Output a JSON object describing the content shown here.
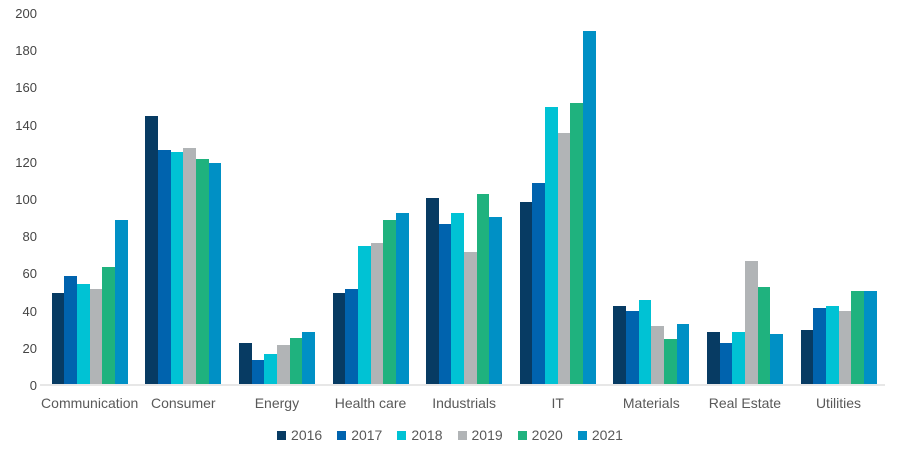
{
  "chart_data": {
    "type": "bar",
    "title": "",
    "xlabel": "",
    "ylabel": "",
    "categories": [
      "Communication",
      "Consumer",
      "Energy",
      "Health care",
      "Industrials",
      "IT",
      "Materials",
      "Real Estate",
      "Utilities"
    ],
    "series": [
      {
        "name": "2016",
        "color": "#073b63",
        "values": [
          49,
          144,
          22,
          49,
          100,
          98,
          42,
          28,
          29
        ]
      },
      {
        "name": "2017",
        "color": "#0063ae",
        "values": [
          58,
          126,
          13,
          51,
          86,
          108,
          39,
          22,
          41
        ]
      },
      {
        "name": "2018",
        "color": "#00c2d4",
        "values": [
          54,
          125,
          16,
          74,
          92,
          149,
          45,
          28,
          42
        ]
      },
      {
        "name": "2019",
        "color": "#b1b4b6",
        "values": [
          51,
          127,
          21,
          76,
          71,
          135,
          31,
          66,
          39
        ]
      },
      {
        "name": "2020",
        "color": "#1fb27e",
        "values": [
          63,
          121,
          25,
          88,
          102,
          151,
          24,
          52,
          50
        ]
      },
      {
        "name": "2021",
        "color": "#0090c5",
        "values": [
          88,
          119,
          28,
          92,
          90,
          190,
          32,
          27,
          50
        ]
      }
    ],
    "ylim": [
      0,
      200
    ],
    "yticks": [
      0,
      20,
      40,
      60,
      80,
      100,
      120,
      140,
      160,
      180,
      200
    ],
    "grid": false,
    "legend_position": "bottom",
    "background": "#ffffff"
  },
  "colors": {
    "axis_line": "#e7e7e7",
    "tick_text": "#454545",
    "category_text": "#595959",
    "legend_text": "#595959"
  }
}
